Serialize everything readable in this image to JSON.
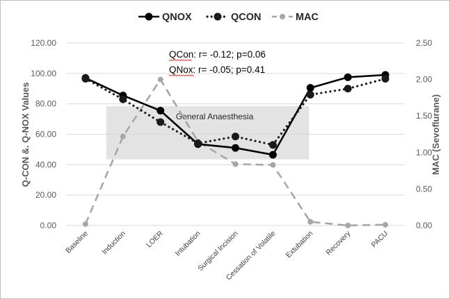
{
  "chart_data": {
    "type": "line",
    "categories": [
      "Baseline",
      "Induction",
      "LOER",
      "Intubation",
      "Surgical Incision",
      "Cessation of Volatile",
      "Extubation",
      "Recovery",
      "PACU"
    ],
    "series": [
      {
        "name": "QNOX",
        "axis": "left",
        "color": "#000000",
        "style": "solid",
        "values": [
          97,
          85.5,
          75.5,
          53.5,
          51,
          46.5,
          90.5,
          97.5,
          99
        ]
      },
      {
        "name": "QCON",
        "axis": "left",
        "color": "#1a1a1a",
        "style": "dotted",
        "values": [
          96.5,
          83,
          68,
          54,
          58.5,
          53,
          86,
          90,
          96.5
        ]
      },
      {
        "name": "MAC",
        "axis": "right",
        "color": "#a6a6a6",
        "style": "dashed",
        "values": [
          0.02,
          1.22,
          2.0,
          1.15,
          0.84,
          0.83,
          0.05,
          0.0,
          0.01
        ]
      }
    ],
    "ylabel": "Q-CON   &.  Q-NOX   Values",
    "y2label": "MAC (Sevoflurane)",
    "ylim": [
      0,
      120
    ],
    "y2lim": [
      0,
      2.5
    ],
    "yticks": [
      "0.00",
      "20.00",
      "40.00",
      "60.00",
      "80.00",
      "100.00",
      "120.00"
    ],
    "y2ticks": [
      "0.00",
      "0.50",
      "1.00",
      "1.50",
      "2.00",
      "2.50"
    ],
    "grid": true,
    "legend_position": "top-center",
    "annotations": {
      "qcon_prefix": "QCon",
      "qcon_rest": ": r= -0.12; p=0.06",
      "qnox_prefix": "QNox",
      "qnox_rest": ": r= -0.05; p=0.41"
    },
    "shaded_region": {
      "label": "General Anaesthesia",
      "from_category": "Induction",
      "to_category": "Extubation",
      "y_range": [
        43.5,
        78.5
      ],
      "color": "#e3e3e3"
    }
  }
}
